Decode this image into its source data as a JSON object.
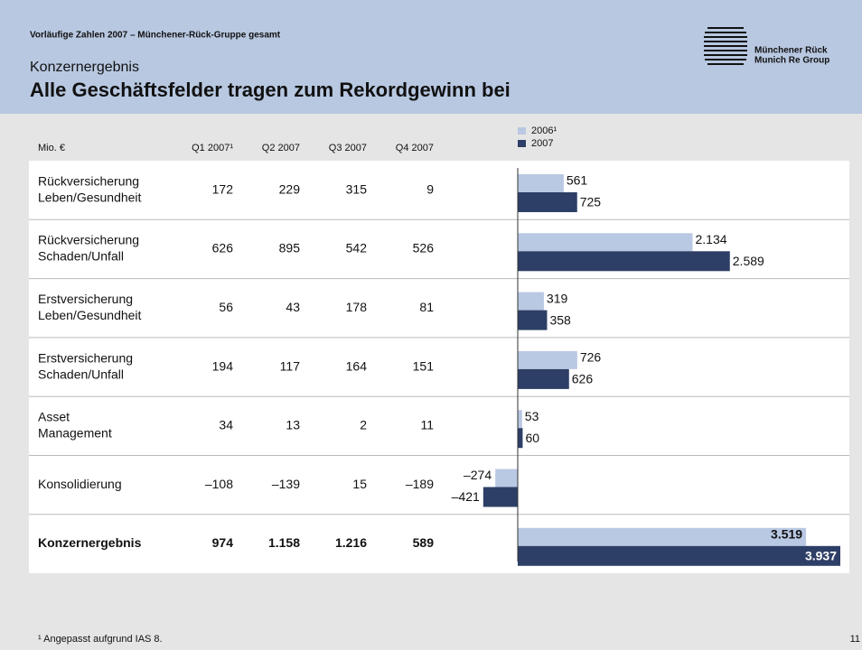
{
  "header": {
    "kicker": "Vorläufige Zahlen  2007 – Münchener-Rück-Gruppe gesamt",
    "subtitle": "Konzernergebnis",
    "title": "Alle Geschäftsfelder tragen zum Rekordgewinn bei",
    "logo": [
      "Münchener Rück",
      "Munich Re Group"
    ]
  },
  "table": {
    "columns": [
      "Mio. €",
      "Q1 2007¹",
      "Q2 2007",
      "Q3 2007",
      "Q4 2007"
    ],
    "rows": [
      {
        "label": [
          "Rückversicherung",
          "Leben/Gesundheit"
        ],
        "cells": [
          "172",
          "229",
          "315",
          "9"
        ]
      },
      {
        "label": [
          "Rückversicherung",
          "Schaden/Unfall"
        ],
        "cells": [
          "626",
          "895",
          "542",
          "526"
        ]
      },
      {
        "label": [
          "Erstversicherung",
          "Leben/Gesundheit"
        ],
        "cells": [
          "56",
          "43",
          "178",
          "81"
        ]
      },
      {
        "label": [
          "Erstversicherung",
          "Schaden/Unfall"
        ],
        "cells": [
          "194",
          "117",
          "164",
          "151"
        ]
      },
      {
        "label": [
          "Asset",
          "Management"
        ],
        "cells": [
          "34",
          "13",
          "2",
          "11"
        ]
      },
      {
        "label": [
          "Konsolidierung"
        ],
        "cells": [
          "–108",
          "–139",
          "15",
          "–189"
        ]
      },
      {
        "label": [
          "Konzernergebnis"
        ],
        "cells": [
          "974",
          "1.158",
          "1.216",
          "589"
        ]
      }
    ]
  },
  "chart_data": {
    "type": "bar",
    "orientation": "horizontal",
    "series": [
      {
        "name": "2006¹",
        "color": "#b9c8e3",
        "values": [
          561,
          2134,
          319,
          726,
          53,
          -274,
          3519
        ],
        "value_labels": [
          "561",
          "2.134",
          "319",
          "726",
          "53",
          "–274",
          "3.519"
        ]
      },
      {
        "name": "2007",
        "color": "#2d3f66",
        "values": [
          725,
          2589,
          358,
          626,
          60,
          -421,
          3937
        ],
        "value_labels": [
          "725",
          "2.589",
          "358",
          "626",
          "60",
          "–421",
          "3.937"
        ]
      }
    ]
  },
  "footnote": "¹ Angepasst aufgrund IAS 8.",
  "page_number": "11"
}
